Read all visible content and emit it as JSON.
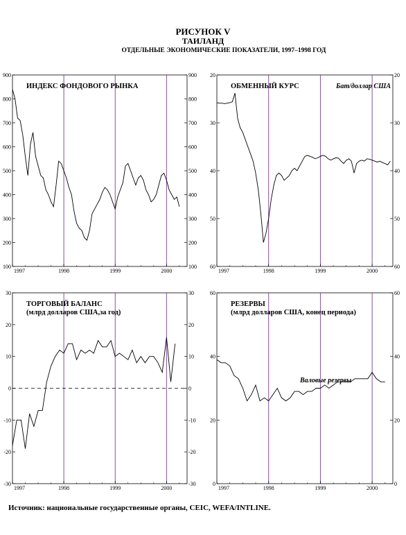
{
  "header": {
    "figure": "РИСУНОК V",
    "country": "ТАИЛАНД",
    "subtitle": "ОТДЕЛЬНЫЕ ЭКОНОМИЧЕСКИЕ ПОКАЗАТЕЛИ, 1997–1998 ГОД"
  },
  "source": "Источник: национальные государственные органы, CEIC, WEFA/INTLINE.",
  "colors": {
    "line": "#000000",
    "year_marker": "#7a3a9a",
    "axis": "#000000"
  },
  "chart_data": [
    {
      "id": "stock",
      "type": "line",
      "title": "ИНДЕКС ФОНДОВОГО РЫНКА",
      "unit_label": "",
      "ylim": [
        100,
        900
      ],
      "yticks": [
        100,
        200,
        300,
        400,
        500,
        600,
        700,
        800,
        900
      ],
      "xlim": [
        1997.0,
        2000.4
      ],
      "xticks": [
        1997,
        1998,
        1999,
        2000
      ],
      "year_markers": [
        1998,
        1999,
        2000
      ],
      "zero_line": false,
      "x": [
        1997.0,
        1997.05,
        1997.1,
        1997.15,
        1997.2,
        1997.25,
        1997.3,
        1997.35,
        1997.4,
        1997.45,
        1997.5,
        1997.55,
        1997.6,
        1997.65,
        1997.7,
        1997.75,
        1997.8,
        1997.85,
        1997.9,
        1997.95,
        1998.0,
        1998.05,
        1998.1,
        1998.15,
        1998.2,
        1998.25,
        1998.3,
        1998.35,
        1998.4,
        1998.45,
        1998.5,
        1998.55,
        1998.6,
        1998.65,
        1998.7,
        1998.75,
        1998.8,
        1998.85,
        1998.9,
        1998.95,
        1999.0,
        1999.05,
        1999.1,
        1999.15,
        1999.2,
        1999.25,
        1999.3,
        1999.35,
        1999.4,
        1999.45,
        1999.5,
        1999.55,
        1999.6,
        1999.65,
        1999.7,
        1999.75,
        1999.8,
        1999.85,
        1999.9,
        1999.95,
        2000.0,
        2000.05,
        2000.1,
        2000.15,
        2000.2,
        2000.25
      ],
      "values": [
        840,
        800,
        720,
        710,
        650,
        560,
        480,
        610,
        660,
        560,
        520,
        480,
        470,
        420,
        400,
        370,
        350,
        440,
        540,
        530,
        500,
        470,
        430,
        400,
        330,
        280,
        260,
        250,
        220,
        210,
        250,
        320,
        340,
        360,
        380,
        410,
        430,
        420,
        400,
        370,
        340,
        390,
        420,
        450,
        520,
        530,
        500,
        470,
        440,
        470,
        480,
        460,
        420,
        400,
        370,
        380,
        400,
        440,
        480,
        490,
        460,
        420,
        400,
        380,
        390,
        350
      ]
    },
    {
      "id": "fx",
      "type": "line",
      "title": "ОБМЕННЫЙ КУРС",
      "unit_label": "Бат/доллар США",
      "ylim": [
        20,
        60
      ],
      "invert_y": true,
      "yticks": [
        20,
        30,
        40,
        50,
        60
      ],
      "xlim": [
        1997.0,
        2000.4
      ],
      "xticks": [
        1997,
        1998,
        1999,
        2000
      ],
      "year_markers": [
        1998,
        1999,
        2000
      ],
      "zero_line": false,
      "x": [
        1997.0,
        1997.05,
        1997.1,
        1997.15,
        1997.2,
        1997.25,
        1997.3,
        1997.35,
        1997.4,
        1997.45,
        1997.5,
        1997.55,
        1997.6,
        1997.65,
        1997.7,
        1997.75,
        1997.8,
        1997.85,
        1997.9,
        1997.95,
        1998.0,
        1998.05,
        1998.1,
        1998.15,
        1998.2,
        1998.25,
        1998.3,
        1998.35,
        1998.4,
        1998.45,
        1998.5,
        1998.55,
        1998.6,
        1998.65,
        1998.7,
        1998.75,
        1998.8,
        1998.85,
        1998.9,
        1998.95,
        1999.0,
        1999.05,
        1999.1,
        1999.15,
        1999.2,
        1999.25,
        1999.3,
        1999.35,
        1999.4,
        1999.45,
        1999.5,
        1999.55,
        1999.6,
        1999.65,
        1999.7,
        1999.75,
        1999.8,
        1999.85,
        1999.9,
        1999.95,
        2000.0,
        2000.05,
        2000.1,
        2000.15,
        2000.2,
        2000.25,
        2000.3,
        2000.35
      ],
      "values": [
        25.8,
        25.9,
        25.9,
        26.0,
        25.9,
        25.8,
        25.6,
        23.8,
        29.0,
        31.0,
        32.0,
        33.5,
        35.0,
        36.5,
        38.0,
        40.5,
        44.0,
        49.0,
        55.0,
        53.0,
        50.0,
        46.0,
        43.0,
        41.0,
        40.5,
        41.0,
        42.0,
        41.5,
        41.0,
        40.0,
        39.5,
        40.0,
        39.0,
        38.0,
        37.0,
        36.8,
        37.0,
        37.2,
        37.5,
        37.3,
        37.0,
        36.8,
        37.0,
        37.5,
        37.8,
        37.5,
        37.3,
        37.4,
        38.0,
        38.5,
        37.8,
        37.5,
        38.0,
        40.5,
        38.5,
        38.0,
        37.8,
        38.0,
        37.5,
        37.6,
        37.8,
        38.0,
        38.2,
        38.0,
        38.3,
        38.5,
        38.8,
        38.0
      ]
    },
    {
      "id": "trade",
      "type": "line",
      "title": "ТОРГОВЫЙ БАЛАНС",
      "title2": "(млрд долларов США,за год)",
      "unit_label": "",
      "ylim": [
        -30,
        30
      ],
      "yticks": [
        -30,
        -20,
        -10,
        0,
        10,
        20,
        30
      ],
      "xlim": [
        1997.0,
        2000.4
      ],
      "xticks": [
        1997,
        1998,
        1999,
        2000
      ],
      "year_markers": [
        1998,
        1999,
        2000
      ],
      "zero_line": true,
      "x": [
        1997.0,
        1997.083,
        1997.167,
        1997.25,
        1997.333,
        1997.417,
        1997.5,
        1997.583,
        1997.667,
        1997.75,
        1997.833,
        1997.917,
        1998.0,
        1998.083,
        1998.167,
        1998.25,
        1998.333,
        1998.417,
        1998.5,
        1998.583,
        1998.667,
        1998.75,
        1998.833,
        1998.917,
        1999.0,
        1999.083,
        1999.167,
        1999.25,
        1999.333,
        1999.417,
        1999.5,
        1999.583,
        1999.667,
        1999.75,
        1999.833,
        1999.917,
        2000.0,
        2000.083,
        2000.167
      ],
      "values": [
        -18,
        -10,
        -10,
        -19,
        -8,
        -12,
        -7,
        -7,
        2,
        7,
        10,
        12,
        11,
        14,
        14,
        9,
        12,
        11,
        12,
        11,
        15,
        13,
        13,
        15,
        10,
        11,
        10,
        9,
        12,
        8,
        10,
        8,
        10,
        10,
        8,
        5,
        16,
        2,
        14
      ]
    },
    {
      "id": "reserves",
      "type": "line",
      "title": "РЕЗЕРВЫ",
      "title2": "(млрд долларов США, конец периода)",
      "unit_label": "",
      "annotation": "Валовые резервы",
      "ylim": [
        0,
        60
      ],
      "yticks": [
        0,
        20,
        40,
        60
      ],
      "xlim": [
        1997.0,
        2000.4
      ],
      "xticks": [
        1997,
        1998,
        1999,
        2000
      ],
      "year_markers": [
        1998,
        1999,
        2000
      ],
      "zero_line": false,
      "x": [
        1997.0,
        1997.083,
        1997.167,
        1997.25,
        1997.333,
        1997.417,
        1997.5,
        1997.583,
        1997.667,
        1997.75,
        1997.833,
        1997.917,
        1998.0,
        1998.083,
        1998.167,
        1998.25,
        1998.333,
        1998.417,
        1998.5,
        1998.583,
        1998.667,
        1998.75,
        1998.833,
        1998.917,
        1999.0,
        1999.083,
        1999.167,
        1999.25,
        1999.333,
        1999.417,
        1999.5,
        1999.583,
        1999.667,
        1999.75,
        1999.833,
        1999.917,
        2000.0,
        2000.083,
        2000.167,
        2000.25
      ],
      "values": [
        39,
        38,
        38,
        37,
        34,
        33,
        30,
        26,
        28,
        31,
        26,
        27,
        26,
        28,
        30,
        27,
        26,
        27,
        29,
        29,
        28,
        29,
        29,
        30,
        30,
        31,
        30,
        31,
        32,
        32,
        32,
        32,
        33,
        33,
        33,
        33,
        35,
        33,
        32,
        32
      ]
    }
  ]
}
